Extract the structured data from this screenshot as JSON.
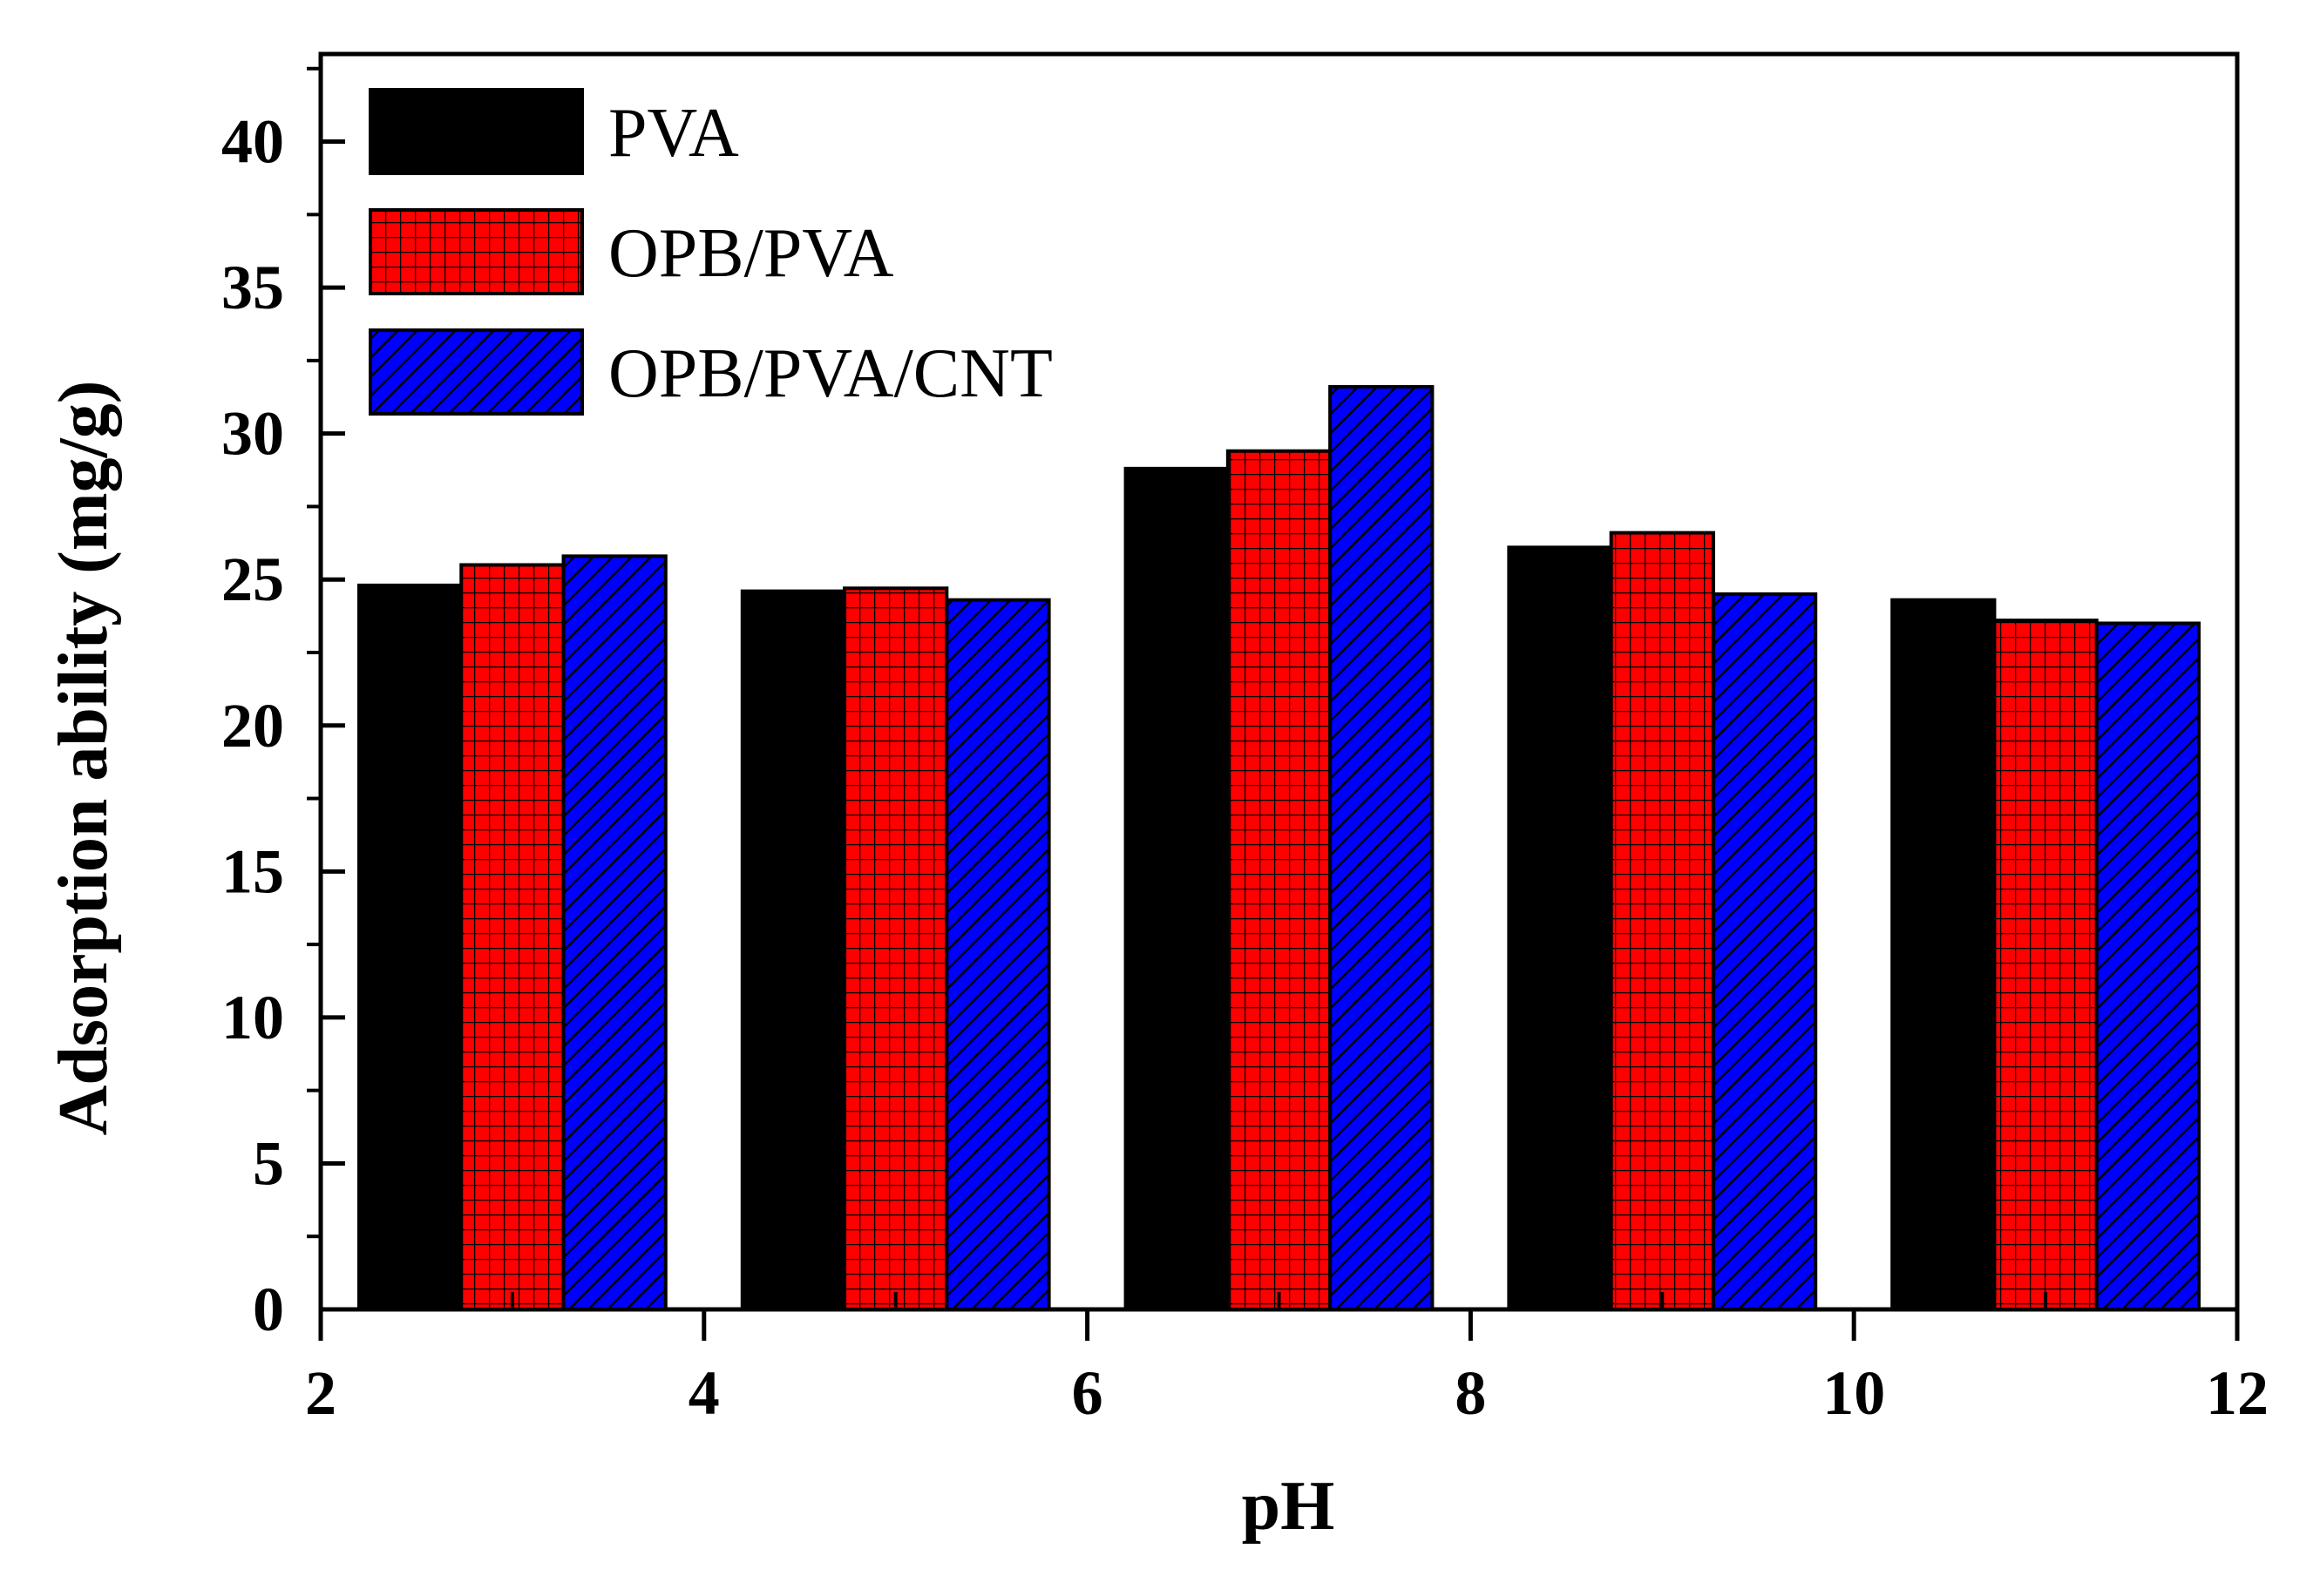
{
  "chart_data": {
    "type": "bar",
    "xlabel": "pH",
    "ylabel": "Adsorption ability (mg/g)",
    "xlim": [
      2,
      12
    ],
    "ylim": [
      0,
      43
    ],
    "x_ticks": [
      2,
      4,
      6,
      8,
      10,
      12
    ],
    "y_ticks": [
      0,
      5,
      10,
      15,
      20,
      25,
      30,
      35,
      40
    ],
    "x_tick_labels": [
      "2",
      "4",
      "6",
      "8",
      "10",
      "12"
    ],
    "y_tick_labels": [
      "0",
      "5",
      "10",
      "15",
      "20",
      "25",
      "30",
      "35",
      "40"
    ],
    "bar_group_span": 1.6,
    "legend_position": "top-left",
    "grid": false,
    "x": [
      3,
      5,
      7,
      9,
      11
    ],
    "series": [
      {
        "name": "PVA",
        "values": [
          24.8,
          24.6,
          28.8,
          26.1,
          24.3
        ],
        "color": "#000000",
        "pattern": "solid"
      },
      {
        "name": "OPB/PVA",
        "values": [
          25.5,
          24.7,
          29.4,
          26.6,
          23.6
        ],
        "color": "#ff0000",
        "pattern": "grid"
      },
      {
        "name": "OPB/PVA/CNT",
        "values": [
          25.8,
          24.3,
          31.6,
          24.5,
          23.5
        ],
        "color": "#0000ff",
        "pattern": "diagonal"
      }
    ]
  }
}
